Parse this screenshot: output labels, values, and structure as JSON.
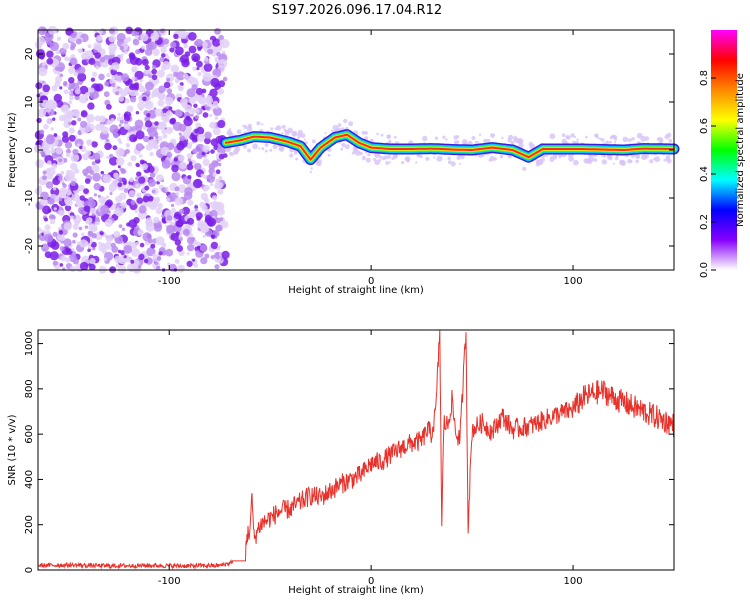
{
  "title": "S197.2026.096.17.04.R12",
  "colors": {
    "trace": "#e8312a",
    "background": "#ffffff",
    "axis": "#000000"
  },
  "chart_data": [
    {
      "type": "heatmap",
      "name": "spectrogram",
      "xlabel": "Height of straight line (km)",
      "ylabel": "Frequency (Hz)",
      "xlim": [
        -165,
        150
      ],
      "ylim": [
        -25,
        25
      ],
      "x_ticks": [
        -100,
        0,
        100
      ],
      "y_ticks": [
        20,
        10,
        0,
        -10,
        -20
      ],
      "x_tick_labels": [
        "-100",
        "0",
        "100"
      ],
      "y_tick_labels": [
        "20",
        "10",
        "0",
        "-10",
        "-20"
      ],
      "noise_region_x": [
        -165,
        -72
      ],
      "ridge_track": {
        "x": [
          -72,
          -65,
          -58,
          -50,
          -42,
          -35,
          -30,
          -25,
          -18,
          -12,
          -6,
          0,
          10,
          20,
          30,
          40,
          50,
          60,
          70,
          78,
          85,
          95,
          105,
          115,
          125,
          135,
          150
        ],
        "freq": [
          1.5,
          2.0,
          2.8,
          2.6,
          1.8,
          0.8,
          -2.0,
          0.5,
          2.6,
          3.2,
          1.5,
          0.5,
          0.2,
          0.2,
          0.3,
          0.1,
          0.0,
          0.5,
          0.0,
          -1.5,
          0.2,
          0.2,
          0.2,
          0.1,
          0.0,
          0.3,
          0.2
        ]
      },
      "colorbar": {
        "label": "Normalized spectral amplitude",
        "ticks": [
          0.0,
          0.2,
          0.4,
          0.6,
          0.8
        ],
        "tick_labels": [
          "0.0",
          "0.2",
          "0.4",
          "0.6",
          "0.8"
        ],
        "range": [
          0,
          1
        ],
        "colormap": [
          "#ff00ff",
          "#ff0000",
          "#ff8800",
          "#ffff00",
          "#00ff00",
          "#00ffff",
          "#0000ff",
          "#8800ff",
          "#ffffff"
        ]
      }
    },
    {
      "type": "line",
      "name": "snr",
      "xlabel": "Height of straight line (km)",
      "ylabel": "SNR (10 * v/v)",
      "xlim": [
        -165,
        150
      ],
      "ylim": [
        0,
        1060
      ],
      "x_ticks": [
        -100,
        0,
        100
      ],
      "y_ticks": [
        0,
        200,
        400,
        600,
        800,
        1000
      ],
      "x_tick_labels": [
        "-100",
        "0",
        "100"
      ],
      "y_tick_labels": [
        "0",
        "200",
        "400",
        "600",
        "800",
        "1000"
      ],
      "series": [
        {
          "name": "SNR",
          "x": [
            -165,
            -150,
            -130,
            -110,
            -90,
            -75,
            -70,
            -65,
            -60,
            -59,
            -58,
            -55,
            -50,
            -45,
            -40,
            -35,
            -30,
            -25,
            -20,
            -15,
            -10,
            -5,
            0,
            5,
            10,
            15,
            20,
            25,
            28,
            30,
            32,
            34,
            35,
            36,
            38,
            40,
            42,
            44,
            46,
            47,
            48,
            50,
            55,
            60,
            65,
            70,
            80,
            90,
            100,
            105,
            110,
            115,
            120,
            125,
            130,
            135,
            140,
            145,
            150
          ],
          "y": [
            20,
            22,
            18,
            20,
            18,
            20,
            30,
            80,
            180,
            320,
            140,
            200,
            230,
            260,
            270,
            300,
            330,
            320,
            350,
            380,
            400,
            420,
            470,
            480,
            510,
            540,
            560,
            570,
            620,
            600,
            700,
            1060,
            180,
            650,
            640,
            750,
            600,
            580,
            900,
            1060,
            200,
            620,
            650,
            610,
            680,
            620,
            640,
            680,
            710,
            760,
            780,
            790,
            760,
            740,
            720,
            700,
            680,
            660,
            640
          ]
        }
      ]
    }
  ]
}
